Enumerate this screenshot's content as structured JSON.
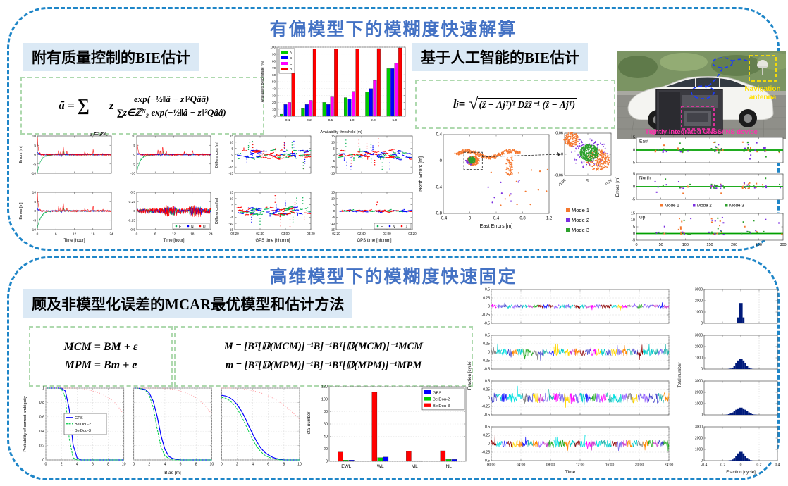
{
  "colors": {
    "panel_border": "#1f86c8",
    "title_blue": "#4472c4",
    "header_bg": "#dbe9f5",
    "formula_border": "#aed9ae",
    "antenna_label": "#ffe000",
    "device_label": "#ff2fae"
  },
  "panels": {
    "top": {
      "title": "有偏模型下的模糊度快速解算",
      "section_left": {
        "title_cn": "附有质量控制的",
        "title_en": "BIE",
        "title_cn2": "估计"
      },
      "section_right": {
        "title_cn": "基于人工智能的",
        "title_en": "BIE",
        "title_cn2": "估计"
      },
      "bie": {
        "lhs": "ā =",
        "sum": "∑",
        "sum_sub": "z∈ℤᴺ₂",
        "factor": "z",
        "num": "exp(−½‖â − z‖²Qââ)",
        "den": "∑z∈ℤᴺ₂ exp(−½‖â − z‖²Qââ)"
      },
      "ai": {
        "lhs_base": "l",
        "lhs_sub": "j",
        "eq": " =",
        "radical": "√",
        "radicand": "(ẑ − Λjᵀ)ᵀ Dẑẑ⁻¹ (ẑ − Λjᵀ)"
      },
      "photo": {
        "antenna_line1": "Navigation",
        "antenna_line2": "antenna",
        "device_label": "Tightly integrated GNSS/INS device"
      }
    },
    "bottom": {
      "title": "高维模型下的模糊度快速固定",
      "section": {
        "title_cn": "顾及非模型化误差的",
        "title_en": "MCAR",
        "title_cn2": "最优模型和估计方法"
      },
      "mcm": {
        "line1": "MCM = BM + ε",
        "line2": "MPM = Bm + e"
      },
      "estimator": {
        "line1": "M = [Bᵀ[𝔻(MCM)]⁻¹B]⁻¹Bᵀ[𝔻(MCM)]⁻¹MCM",
        "line2": "m = [Bᵀ[𝔻(MPM)]⁻¹B]⁻¹Bᵀ[𝔻(MPM)]⁻¹MPM"
      }
    }
  },
  "chart_data": [
    {
      "id": "availability",
      "type": "bar",
      "title": "",
      "xlabel": "Availability threshold [m]",
      "ylabel": "Availability percentage [%]",
      "categories": [
        "0.1",
        "0.2",
        "0.5",
        "1.0",
        "2.0",
        "5.0"
      ],
      "ylim": [
        0,
        100
      ],
      "yticks": [
        0,
        10,
        20,
        30,
        40,
        50,
        60,
        70,
        80,
        90,
        100
      ],
      "legend_position": "top-left",
      "series": [
        {
          "name": "A",
          "color": "#00cc00",
          "values": [
            3,
            11,
            20,
            27,
            35,
            69
          ]
        },
        {
          "name": "B",
          "color": "#0000ff",
          "values": [
            17,
            17,
            17,
            25,
            40,
            69
          ]
        },
        {
          "name": "C",
          "color": "#ff00ff",
          "values": [
            20,
            23,
            28,
            36,
            52,
            77
          ]
        },
        {
          "name": "D",
          "color": "#ff0000",
          "values": [
            97,
            97,
            97,
            97,
            98,
            99
          ]
        }
      ]
    },
    {
      "id": "errors_time",
      "type": "noise-grid",
      "xlabel": "Time [hour]",
      "ylabel": "Errors [m]",
      "xlim": [
        0,
        24
      ],
      "xticks": [
        0,
        6,
        12,
        18,
        24
      ],
      "subplots": [
        {
          "ylim": [
            -10,
            10
          ],
          "yticks": [
            -10,
            -5,
            0,
            5,
            10
          ],
          "style": "converge"
        },
        {
          "ylim": [
            -10,
            10
          ],
          "yticks": [
            -10,
            -5,
            0,
            5,
            10
          ],
          "style": "converge"
        },
        {
          "ylim": [
            -10,
            10
          ],
          "yticks": [
            -10,
            -5,
            0,
            5,
            10
          ],
          "style": "converge"
        },
        {
          "ylim": [
            -0.5,
            0.5
          ],
          "yticks": [
            -0.5,
            -0.25,
            0,
            0.25,
            0.5
          ],
          "style": "flat",
          "legend": true
        }
      ],
      "series": [
        {
          "name": "E",
          "color": "#00b050"
        },
        {
          "name": "N",
          "color": "#0000ff"
        },
        {
          "name": "U",
          "color": "#ff0000"
        }
      ]
    },
    {
      "id": "differences",
      "type": "scatter-grid",
      "xlabel": "GPS time [hh:mm]",
      "ylabel": "Differences [m]",
      "xticklabels": [
        "02:20",
        "02:40",
        "03:00",
        "03:20"
      ],
      "ylim": [
        -15,
        15
      ],
      "yticks": [
        -15,
        -10,
        -5,
        0,
        5,
        10,
        15
      ],
      "subplots": [
        {
          "amp": 7
        },
        {
          "amp": 7
        },
        {
          "amp": 6
        },
        {
          "amp": 0.8,
          "legend": true
        }
      ],
      "series": [
        {
          "name": "E",
          "color": "#00b050"
        },
        {
          "name": "N",
          "color": "#0000ff"
        },
        {
          "name": "U",
          "color": "#ff0000"
        }
      ]
    },
    {
      "id": "scatter_modes",
      "type": "scatter-modes",
      "xlabel": "East Errors [m]",
      "ylabel": "North Errors [m]",
      "xlim": [
        -0.4,
        1.2
      ],
      "xticks": [
        -0.4,
        0,
        0.4,
        0.8,
        1.2
      ],
      "ylim": [
        -0.8,
        0.4
      ],
      "yticks": [
        -0.8,
        -0.4,
        0,
        0.4
      ],
      "inset": {
        "lim": [
          -0.06,
          0.06
        ],
        "ticks": [
          -0.06,
          0,
          0.06
        ]
      },
      "series": [
        {
          "name": "Mode 1",
          "color": "#f4772e"
        },
        {
          "name": "Mode 2",
          "color": "#7a2ee0"
        },
        {
          "name": "Mode 3",
          "color": "#2ca02c"
        }
      ]
    },
    {
      "id": "enu_epoch",
      "type": "epoch-rows",
      "xlabel": "Epoch [s]",
      "ylabel": "Errors [m]",
      "xlim": [
        0,
        300
      ],
      "xticks": [
        0,
        50,
        100,
        150,
        200,
        250,
        300
      ],
      "zero_line_color": "#00a000",
      "rows": [
        {
          "label": "East",
          "ylim": [
            -5,
            5
          ],
          "yticks": [
            -5,
            0,
            5
          ]
        },
        {
          "label": "North",
          "ylim": [
            -5,
            5
          ],
          "yticks": [
            -5,
            0,
            5
          ]
        },
        {
          "label": "Up",
          "ylim": [
            -5,
            15
          ],
          "yticks": [
            -5,
            0,
            5,
            10,
            15
          ]
        }
      ],
      "series": [
        {
          "name": "Mode 1",
          "color": "#f4772e"
        },
        {
          "name": "Mode 2",
          "color": "#7a2ee0"
        },
        {
          "name": "Mode 3",
          "color": "#2ca02c"
        }
      ]
    },
    {
      "id": "probability",
      "type": "line-multiples",
      "xlabel": "Bias [m]",
      "ylabel": "Probability of correct ambiguity",
      "xlim": [
        0,
        10
      ],
      "xticks": [
        0,
        2,
        4,
        6,
        8,
        10
      ],
      "ylim": [
        0,
        1
      ],
      "yticks": [
        0,
        0.2,
        0.4,
        0.6,
        0.8,
        1
      ],
      "x_step": 0.5,
      "series_names": [
        "GPS",
        "BeiDou-2",
        "BeiDou-3"
      ],
      "series_colors": [
        "#0000ff",
        "#00cc44",
        "#ff9aa0"
      ],
      "series_dash": [
        "",
        "3 1.5",
        "1 2.2"
      ],
      "legend_subplot": 0,
      "subplots": [
        {
          "GPS": [
            1,
            1,
            1,
            1,
            1,
            0.96,
            0.71,
            0.21,
            0.03,
            0,
            0,
            0,
            0,
            0,
            0,
            0,
            0,
            0,
            0,
            0,
            0
          ],
          "BeiDou-2": [
            1,
            1,
            1,
            1,
            0.99,
            0.87,
            0.3,
            0.03,
            0,
            0,
            0,
            0,
            0,
            0,
            0,
            0,
            0,
            0,
            0,
            0,
            0
          ],
          "BeiDou-3": [
            1,
            1,
            1,
            1,
            1,
            1,
            1,
            1,
            0.995,
            0.99,
            0.985,
            0.975,
            0.96,
            0.945,
            0.925,
            0.9,
            0.87,
            0.83,
            0.78,
            0.71,
            0.63
          ]
        },
        {
          "GPS": [
            1,
            1,
            0.99,
            0.98,
            0.93,
            0.82,
            0.61,
            0.34,
            0.15,
            0.05,
            0.02,
            0.01,
            0,
            0,
            0,
            0,
            0,
            0,
            0,
            0,
            0
          ],
          "BeiDou-2": [
            1,
            1,
            0.99,
            0.97,
            0.9,
            0.73,
            0.44,
            0.18,
            0.06,
            0.02,
            0,
            0,
            0,
            0,
            0,
            0,
            0,
            0,
            0,
            0,
            0
          ],
          "BeiDou-3": [
            1,
            1,
            1,
            1,
            1,
            1,
            1,
            0.998,
            0.995,
            0.99,
            0.985,
            0.975,
            0.96,
            0.94,
            0.92,
            0.895,
            0.865,
            0.825,
            0.775,
            0.71,
            0.64
          ]
        },
        {
          "GPS": [
            0.9,
            0.89,
            0.87,
            0.83,
            0.77,
            0.69,
            0.59,
            0.47,
            0.36,
            0.26,
            0.17,
            0.11,
            0.07,
            0.04,
            0.02,
            0.01,
            0,
            0,
            0,
            0,
            0
          ],
          "BeiDou-2": [
            0.87,
            0.86,
            0.83,
            0.78,
            0.71,
            0.62,
            0.51,
            0.39,
            0.28,
            0.19,
            0.12,
            0.07,
            0.04,
            0.02,
            0.01,
            0,
            0,
            0,
            0,
            0,
            0
          ],
          "BeiDou-3": [
            1,
            1,
            1,
            0.998,
            0.995,
            0.99,
            0.985,
            0.975,
            0.965,
            0.95,
            0.935,
            0.915,
            0.89,
            0.865,
            0.835,
            0.8,
            0.76,
            0.72,
            0.67,
            0.62,
            0.57
          ]
        }
      ]
    },
    {
      "id": "total_number",
      "type": "bar",
      "title": "",
      "xlabel": "",
      "ylabel": "Total number",
      "categories": [
        "EWL",
        "WL",
        "ML",
        "NL"
      ],
      "ylim": [
        0,
        120
      ],
      "yticks": [
        0,
        20,
        40,
        60,
        80,
        100,
        120
      ],
      "legend_position": "top-right",
      "bar_order": [
        "BeiDou-3",
        "BeiDou-2",
        "GPS"
      ],
      "series": [
        {
          "name": "GPS",
          "color": "#0000ff",
          "values": [
            2,
            7,
            1,
            3
          ]
        },
        {
          "name": "BeiDou-2",
          "color": "#00cc00",
          "values": [
            2,
            6,
            1,
            3
          ]
        },
        {
          "name": "BeiDou-3",
          "color": "#ff0000",
          "values": [
            15,
            111,
            16,
            17
          ]
        }
      ]
    },
    {
      "id": "fraction_series",
      "type": "fraction-rows",
      "xlabel": "Time",
      "ylabel": "Fraction [cycle]",
      "xlim": [
        0,
        24
      ],
      "xticks": [
        0,
        4,
        8,
        12,
        16,
        20,
        24
      ],
      "xticklabels": [
        "00:00",
        "04:00",
        "08:00",
        "12:00",
        "16:00",
        "20:00",
        "24:00"
      ],
      "ylim": [
        -0.5,
        0.5
      ],
      "yticks": [
        -0.5,
        -0.25,
        0,
        0.25,
        0.5
      ],
      "rows": [
        {
          "amp": 0.05
        },
        {
          "amp": 0.11
        },
        {
          "amp": 0.15
        },
        {
          "amp": 0.11
        }
      ],
      "palette": [
        "#ff00ff",
        "#2222ff",
        "#00cccc",
        "#ff8800",
        "#ffd700",
        "#22aa22",
        "#8b0000",
        "#888888",
        "#9966ff",
        "#00e0e0",
        "#4444cc",
        "#cc44cc",
        "#7b68ee",
        "#20b2aa"
      ]
    },
    {
      "id": "fraction_hist",
      "type": "hist-rows",
      "xlabel": "Fraction [cycle]",
      "ylabel": "Total number",
      "xlim": [
        -0.4,
        0.4
      ],
      "xticks": [
        -0.4,
        -0.2,
        0,
        0.2,
        0.4
      ],
      "ylim": [
        0,
        3000
      ],
      "yticks": [
        0,
        1000,
        2000,
        3000
      ],
      "bar_color": "#001a7a",
      "rows": [
        {
          "peak": 2100,
          "sigma": 0.018
        },
        {
          "peak": 950,
          "sigma": 0.045
        },
        {
          "peak": 650,
          "sigma": 0.06
        },
        {
          "peak": 800,
          "sigma": 0.045
        }
      ]
    }
  ]
}
